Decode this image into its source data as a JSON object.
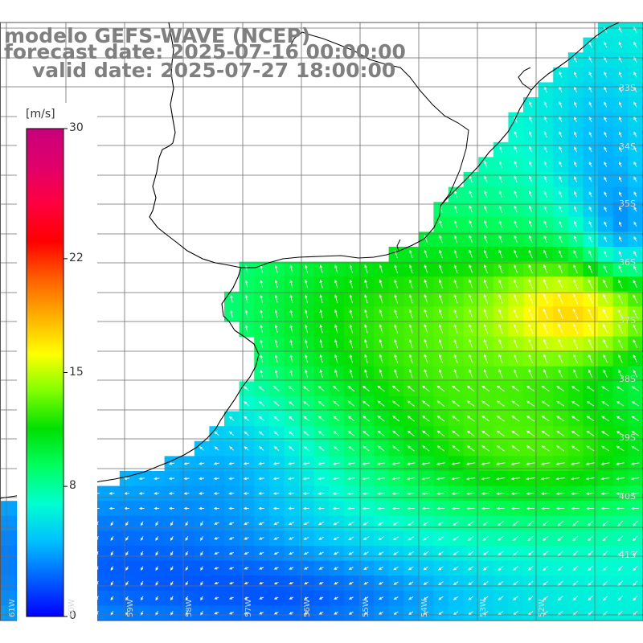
{
  "titles": {
    "line1": "modelo GEFS-WAVE (NCEP)",
    "line2": "forecast date: 2025-07-16 00:00:00",
    "line3": "valid date: 2025-07-27 18:00:00"
  },
  "colorbar": {
    "unit": "[m/s]",
    "ticks": [
      "30",
      "22",
      "15",
      "8",
      "0"
    ],
    "tick_values": [
      30,
      22,
      15,
      8,
      0
    ],
    "range": [
      0,
      30
    ],
    "colors": [
      "#0000ff",
      "#0060ff",
      "#00c0ff",
      "#00ffd0",
      "#00ff60",
      "#00e000",
      "#80ff00",
      "#ffff00",
      "#ffb000",
      "#ff6000",
      "#ff0000",
      "#ff0040",
      "#e0006a",
      "#c8007a"
    ]
  },
  "lat_labels": [
    "33S",
    "34S",
    "35S",
    "36S",
    "37S",
    "38S",
    "39S",
    "40S",
    "41S"
  ],
  "lon_labels": [
    "61W",
    "60W",
    "59W",
    "58W",
    "57W",
    "56W",
    "55W",
    "54W",
    "53W",
    "52W"
  ],
  "colors": {
    "land": "#ffffff",
    "coast": "#000000",
    "grid": "#6e6e6e",
    "title": "#7f7f7f",
    "arrow": "#ffffff"
  }
}
